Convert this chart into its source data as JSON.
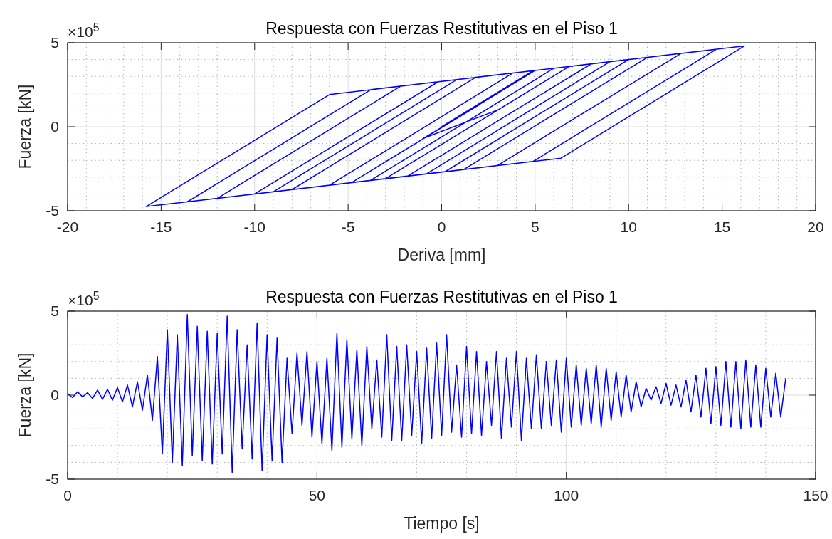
{
  "chart_data": [
    {
      "type": "line",
      "title": "Respuesta con Fuerzas Restitutivas en el Piso 1",
      "xlabel": "Deriva [mm]",
      "ylabel": "Fuerza [kN]",
      "annotations": [
        "×10$^{5}$"
      ],
      "xlim": [
        -20,
        20
      ],
      "xticks": [
        -20,
        -15,
        -10,
        -5,
        0,
        5,
        10,
        15,
        20
      ],
      "ylim": [
        -5,
        5
      ],
      "yticks": [
        -5,
        0,
        5
      ],
      "grid": true,
      "series": [
        {
          "color": "#0000ff",
          "x": [
            0,
            4.9,
            8,
            -1.82,
            -9,
            0.82,
            12.8,
            2.98,
            -15.8,
            -5.98,
            16.2,
            6.38,
            -3,
            6.82,
            10,
            0.18,
            -12,
            -2.18,
            14.7,
            4.88,
            -6,
            3.82,
            11,
            1.18,
            -13.6,
            -3.78,
            9,
            -0.82,
            -8,
            1.82,
            6,
            -3.82,
            -10,
            -0.18,
            5,
            -4.82,
            -2,
            2,
            -1,
            3
          ],
          "values": [
            0,
            3.34,
            3.74,
            -2.94,
            -3.87,
            2.81,
            4.36,
            -2.31,
            -4.75,
            1.92,
            4.81,
            -1.87,
            -3.09,
            3.59,
            4.0,
            -2.68,
            -4.26,
            2.42,
            4.61,
            -2.07,
            -3.48,
            3.2,
            4.13,
            -2.55,
            -4.47,
            2.21,
            3.87,
            -2.81,
            -3.74,
            2.94,
            3.48,
            -3.2,
            -4.0,
            2.68,
            3.35,
            -3.33,
            -1.4,
            1.3,
            -0.7,
            1.0
          ]
        }
      ]
    },
    {
      "type": "line",
      "title": "Respuesta con Fuerzas Restitutivas en el Piso 1",
      "xlabel": "Tiempo [s]",
      "ylabel": "Fuerza [kN]",
      "annotations": [
        "×10$^{5}$"
      ],
      "xlim": [
        0,
        150
      ],
      "xticks": [
        0,
        50,
        100,
        150
      ],
      "ylim": [
        -5,
        5
      ],
      "yticks": [
        -5,
        0,
        5
      ],
      "grid": true,
      "series": [
        {
          "color": "#0000ff",
          "x": [
            0,
            1,
            2,
            3,
            4,
            5,
            6,
            7,
            8,
            9,
            10,
            11,
            12,
            13,
            14,
            15,
            16,
            17,
            18,
            19,
            20,
            21,
            22,
            23,
            24,
            25,
            26,
            27,
            28,
            29,
            30,
            31,
            32,
            33,
            34,
            35,
            36,
            37,
            38,
            39,
            40,
            41,
            42,
            43,
            44,
            45,
            46,
            47,
            48,
            49,
            50,
            51,
            52,
            53,
            54,
            55,
            56,
            57,
            58,
            59,
            60,
            61,
            62,
            63,
            64,
            65,
            66,
            67,
            68,
            69,
            70,
            71,
            72,
            73,
            74,
            75,
            76,
            77,
            78,
            79,
            80,
            81,
            82,
            83,
            84,
            85,
            86,
            87,
            88,
            89,
            90,
            91,
            92,
            93,
            94,
            95,
            96,
            97,
            98,
            99,
            100,
            101,
            102,
            103,
            104,
            105,
            106,
            107,
            108,
            109,
            110,
            111,
            112,
            113,
            114,
            115,
            116,
            117,
            118,
            119,
            120,
            121,
            122,
            123,
            124,
            125,
            126,
            127,
            128,
            129,
            130,
            131,
            132,
            133,
            134,
            135,
            136,
            137,
            138,
            139,
            140,
            141,
            142,
            143,
            144
          ],
          "values": [
            0.1,
            -0.15,
            0.2,
            -0.1,
            0.15,
            -0.2,
            0.3,
            -0.25,
            0.35,
            -0.3,
            0.45,
            -0.4,
            0.6,
            -0.7,
            0.8,
            -0.9,
            1.2,
            -1.5,
            2.3,
            -3.5,
            3.9,
            -4.0,
            3.6,
            -4.2,
            4.8,
            -3.6,
            4.1,
            -3.9,
            3.8,
            -4.1,
            3.7,
            -3.5,
            4.7,
            -4.6,
            3.9,
            -3.2,
            3.0,
            -3.8,
            4.3,
            -4.5,
            3.6,
            -3.9,
            3.4,
            -4.0,
            2.2,
            -2.3,
            2.5,
            -1.8,
            2.6,
            -2.5,
            2.0,
            -2.9,
            2.2,
            -3.3,
            3.7,
            -3.1,
            3.3,
            -2.6,
            2.7,
            -3.0,
            2.9,
            -2.0,
            2.1,
            -2.5,
            3.6,
            -2.7,
            2.9,
            -2.7,
            3.0,
            -2.4,
            2.6,
            -2.9,
            2.8,
            -2.6,
            3.1,
            -2.4,
            3.6,
            -2.2,
            1.8,
            -2.5,
            2.9,
            -2.3,
            2.6,
            -2.4,
            2.0,
            -1.8,
            2.6,
            -2.6,
            2.2,
            -1.9,
            2.6,
            -2.7,
            2.2,
            -2.0,
            2.4,
            -2.0,
            2.0,
            -1.8,
            2.1,
            -2.2,
            2.2,
            -1.9,
            1.8,
            -1.8,
            1.6,
            -1.7,
            1.8,
            -1.9,
            1.6,
            -1.5,
            1.4,
            -1.3,
            1.2,
            -1.0,
            0.8,
            -0.7,
            0.4,
            -0.3,
            0.5,
            -0.5,
            0.7,
            -0.6,
            0.6,
            -0.7,
            0.9,
            -1.0,
            1.2,
            -1.3,
            1.6,
            -1.7,
            1.7,
            -1.8,
            2.0,
            -1.9,
            2.0,
            -2.0,
            2.1,
            -1.9,
            1.8,
            -1.9,
            1.6,
            -1.3,
            1.3,
            -1.3,
            1.0
          ]
        }
      ]
    }
  ]
}
